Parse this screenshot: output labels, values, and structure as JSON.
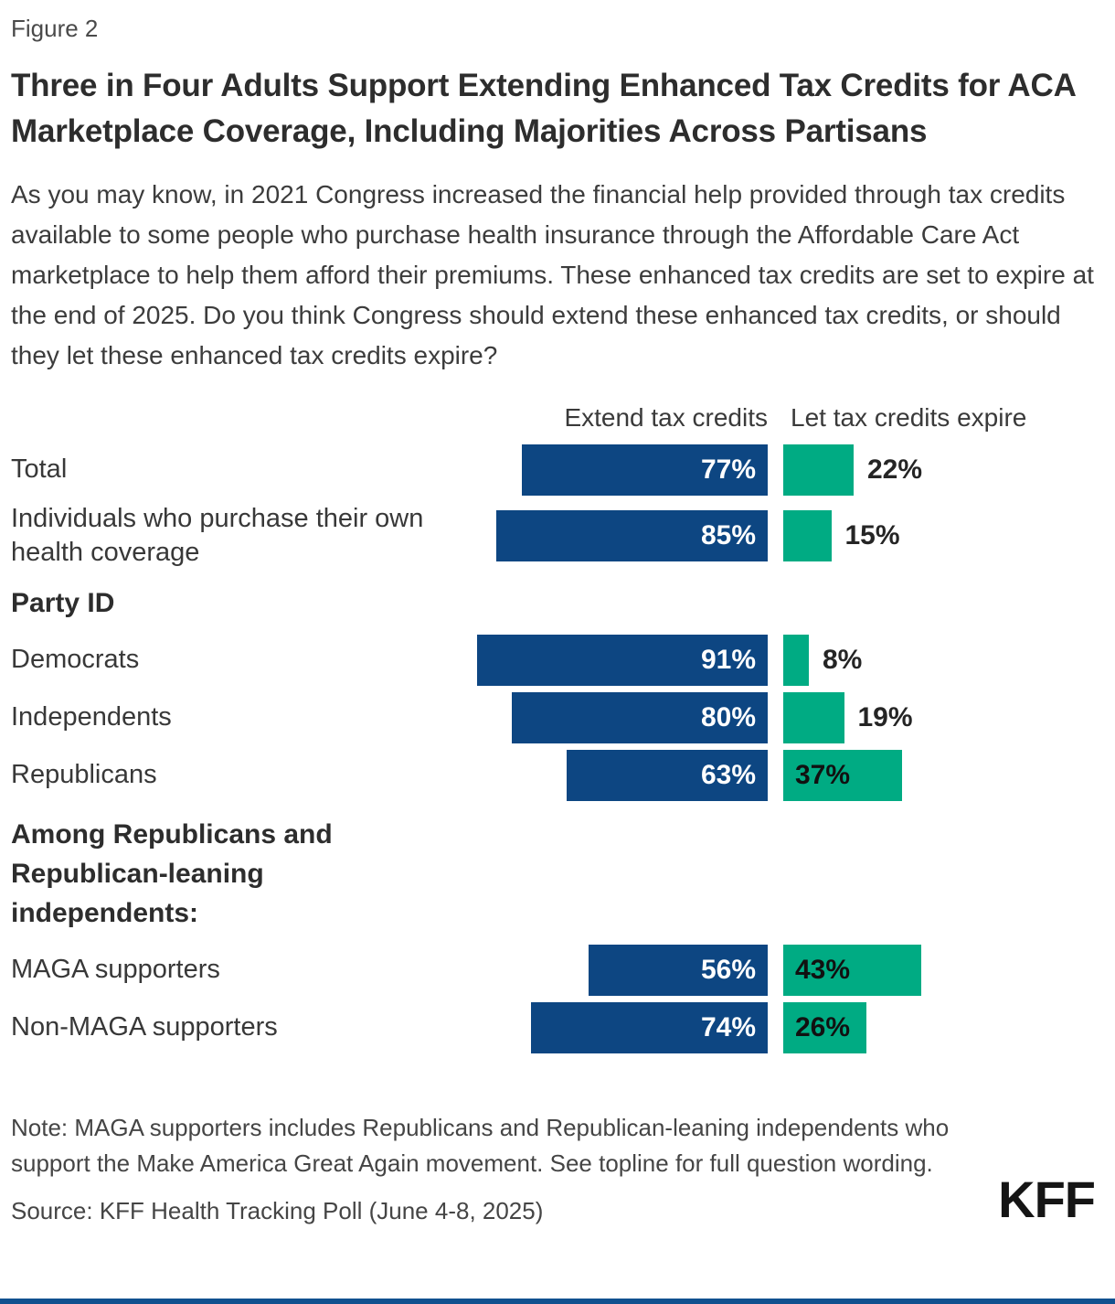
{
  "figure_label": "Figure 2",
  "title": "Three in Four Adults Support Extending Enhanced Tax Credits for ACA Marketplace Coverage, Including Majorities Across Partisans",
  "question": "As you may know, in 2021 Congress increased the financial help provided through tax credits available to some people who purchase health insurance through the Affordable Care Act marketplace to help them afford their premiums. These enhanced tax credits are set to expire at the end of 2025. Do you think Congress should extend these enhanced tax credits, or should they let these enhanced tax credits expire?",
  "columns": {
    "extend": "Extend tax credits",
    "expire": "Let tax credits expire"
  },
  "colors": {
    "extend_bar": "#0D4682",
    "expire_bar": "#00AB83",
    "bottom_rule": "#11518F"
  },
  "rows": [
    {
      "type": "bar",
      "label": "Total",
      "extend": 77,
      "extend_label": "77%",
      "expire": 22,
      "expire_label": "22%",
      "expire_label_inside": false
    },
    {
      "type": "bar",
      "label": "Individuals who purchase their own health coverage",
      "extend": 85,
      "extend_label": "85%",
      "expire": 15,
      "expire_label": "15%",
      "expire_label_inside": false
    },
    {
      "type": "header",
      "label": "Party ID"
    },
    {
      "type": "bar",
      "label": "Democrats",
      "extend": 91,
      "extend_label": "91%",
      "expire": 8,
      "expire_label": "8%",
      "expire_label_inside": false
    },
    {
      "type": "bar",
      "label": "Independents",
      "extend": 80,
      "extend_label": "80%",
      "expire": 19,
      "expire_label": "19%",
      "expire_label_inside": false
    },
    {
      "type": "bar",
      "label": "Republicans",
      "extend": 63,
      "extend_label": "63%",
      "expire": 37,
      "expire_label": "37%",
      "expire_label_inside": true
    },
    {
      "type": "header",
      "label": "Among Republicans and Republican-leaning independents:"
    },
    {
      "type": "bar",
      "label": "MAGA supporters",
      "extend": 56,
      "extend_label": "56%",
      "expire": 43,
      "expire_label": "43%",
      "expire_label_inside": true
    },
    {
      "type": "bar",
      "label": "Non-MAGA supporters",
      "extend": 74,
      "extend_label": "74%",
      "expire": 26,
      "expire_label": "26%",
      "expire_label_inside": true
    }
  ],
  "note": "Note: MAGA supporters includes Republicans and Republican-leaning independents who support the Make America Great Again movement. See topline for full question wording.",
  "source": "Source: KFF Health Tracking Poll (June 4-8, 2025)",
  "logo": "KFF",
  "chart_data": {
    "type": "bar",
    "orientation": "horizontal",
    "title": "Three in Four Adults Support Extending Enhanced Tax Credits for ACA Marketplace Coverage, Including Majorities Across Partisans",
    "subtitle_question": "As you may know, in 2021 Congress increased the financial help provided through tax credits available to some people who purchase health insurance through the Affordable Care Act marketplace to help them afford their premiums. These enhanced tax credits are set to expire at the end of 2025. Do you think Congress should extend these enhanced tax credits, or should they let these enhanced tax credits expire?",
    "categories": [
      "Total",
      "Individuals who purchase their own health coverage",
      "Democrats",
      "Independents",
      "Republicans",
      "MAGA supporters",
      "Non-MAGA supporters"
    ],
    "category_groups": [
      {
        "label": "Party ID",
        "applies_to": [
          "Democrats",
          "Independents",
          "Republicans"
        ]
      },
      {
        "label": "Among Republicans and Republican-leaning independents:",
        "applies_to": [
          "MAGA supporters",
          "Non-MAGA supporters"
        ]
      }
    ],
    "series": [
      {
        "name": "Extend tax credits",
        "color": "#0D4682",
        "values": [
          77,
          85,
          91,
          80,
          63,
          56,
          74
        ]
      },
      {
        "name": "Let tax credits expire",
        "color": "#00AB83",
        "values": [
          22,
          15,
          8,
          19,
          37,
          43,
          26
        ]
      }
    ],
    "value_unit": "%",
    "xlim": [
      0,
      100
    ],
    "grid": false,
    "legend_position": "top-as-column-headers",
    "data_labels": "shown-on-bars"
  }
}
